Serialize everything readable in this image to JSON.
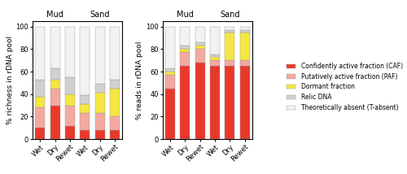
{
  "chart_data": [
    {
      "type": "bar",
      "stacked": true,
      "ylabel": "% richness in rDNA pool",
      "annotations": [
        "Mud",
        "Sand"
      ],
      "categories": [
        "Wet",
        "Dry",
        "Rewet",
        "Wet",
        "Dry",
        "Rewet"
      ],
      "series": [
        {
          "name": "Confidently active fraction (CAF)",
          "color": "#e8392a",
          "values": [
            10,
            30,
            12,
            8,
            8,
            8
          ]
        },
        {
          "name": "Putatively active fraction (PAF)",
          "color": "#f4a9a0",
          "values": [
            18,
            15,
            18,
            15,
            15,
            12
          ]
        },
        {
          "name": "Dormant fraction",
          "color": "#f5e642",
          "values": [
            10,
            8,
            10,
            8,
            18,
            25
          ]
        },
        {
          "name": "Relic DNA",
          "color": "#d0d0d0",
          "values": [
            15,
            10,
            15,
            8,
            8,
            8
          ]
        },
        {
          "name": "Theoretically absent (T-absent)",
          "color": "#f2f2f2",
          "values": [
            47,
            37,
            45,
            61,
            51,
            47
          ]
        }
      ],
      "ylim": [
        0,
        105
      ],
      "yticks": [
        0,
        20,
        40,
        60,
        80,
        100
      ],
      "legend": "center right"
    },
    {
      "type": "bar",
      "stacked": true,
      "ylabel": "% reads in rDNA pool",
      "annotations": [
        "Mud",
        "Sand"
      ],
      "categories": [
        "Wet",
        "Dry",
        "Rewet",
        "Wet",
        "Dry",
        "Rewet"
      ],
      "series": [
        {
          "name": "Confidently active fraction (CAF)",
          "color": "#e8392a",
          "values": [
            45,
            65,
            68,
            65,
            65,
            65
          ]
        },
        {
          "name": "Putatively active fraction (PAF)",
          "color": "#f4a9a0",
          "values": [
            12,
            12,
            12,
            5,
            5,
            5
          ]
        },
        {
          "name": "Dormant fraction",
          "color": "#f5e642",
          "values": [
            3,
            3,
            3,
            3,
            25,
            25
          ]
        },
        {
          "name": "Relic DNA",
          "color": "#d0d0d0",
          "values": [
            3,
            3,
            3,
            2,
            2,
            2
          ]
        },
        {
          "name": "Theoretically absent (T-absent)",
          "color": "#f2f2f2",
          "values": [
            37,
            17,
            14,
            25,
            3,
            3
          ]
        }
      ],
      "ylim": [
        0,
        105
      ],
      "yticks": [
        0,
        20,
        40,
        60,
        80,
        100
      ]
    }
  ]
}
